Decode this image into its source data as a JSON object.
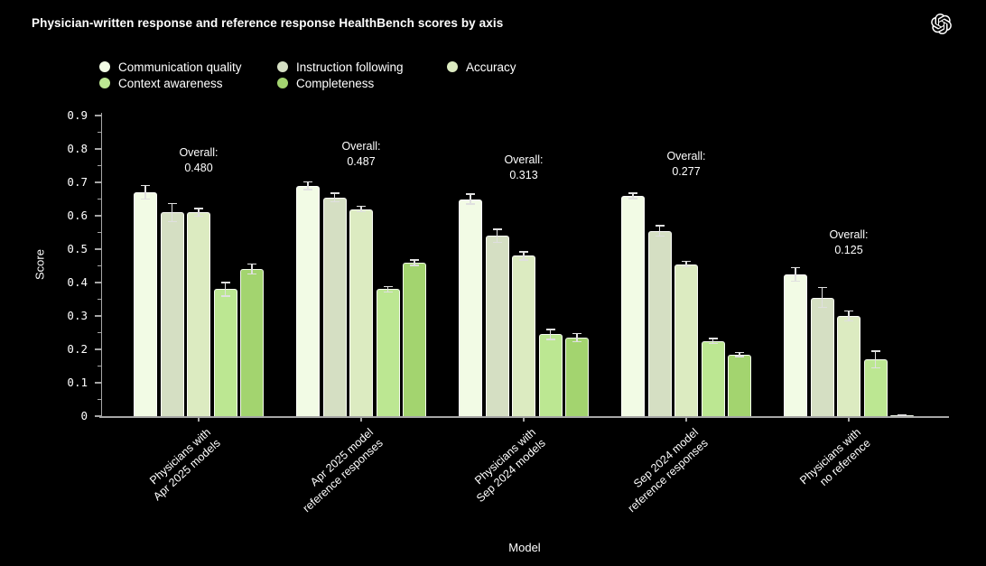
{
  "header": {
    "title": "Physician-written response and reference response HealthBench scores by axis",
    "logo_icon": "openai-logo"
  },
  "chart_data": {
    "type": "bar",
    "title": "Physician-written response and reference response HealthBench scores by axis",
    "xlabel": "Model",
    "ylabel": "Score",
    "ylim": [
      0,
      0.9
    ],
    "ytick_step": 0.1,
    "ytick_minor_step": 0.05,
    "ytick_labels": [
      "0",
      "0.1",
      "0.2",
      "0.3",
      "0.4",
      "0.5",
      "0.6",
      "0.7",
      "0.8",
      "0.9"
    ],
    "grid": false,
    "legend_position": "top-left",
    "background_color": "#000000",
    "text_color": "#ffffff",
    "axis_color": "#a6a6a6",
    "errorbar_color": "#e0e0e0",
    "categories": [
      [
        "Physicians with",
        "Apr 2025 models"
      ],
      [
        "Apr 2025 model",
        "reference responses"
      ],
      [
        "Physicians with",
        "Sep 2024 models"
      ],
      [
        "Sep 2024 model",
        "reference responses"
      ],
      [
        "Physicians with",
        "no reference"
      ]
    ],
    "series": [
      {
        "name": "Communication quality",
        "color": "#f2fbe5",
        "values": [
          0.67,
          0.69,
          0.65,
          0.66,
          0.425
        ],
        "errors": [
          0.02,
          0.012,
          0.015,
          0.008,
          0.02
        ]
      },
      {
        "name": "Instruction following",
        "color": "#d5dfc3",
        "values": [
          0.61,
          0.655,
          0.54,
          0.555,
          0.355
        ],
        "errors": [
          0.027,
          0.013,
          0.02,
          0.015,
          0.03
        ]
      },
      {
        "name": "Accuracy",
        "color": "#dcebc1",
        "values": [
          0.61,
          0.62,
          0.48,
          0.455,
          0.3
        ],
        "errors": [
          0.012,
          0.008,
          0.012,
          0.008,
          0.015
        ]
      },
      {
        "name": "Context awareness",
        "color": "#bce792",
        "values": [
          0.38,
          0.38,
          0.245,
          0.225,
          0.17
        ],
        "errors": [
          0.02,
          0.008,
          0.015,
          0.008,
          0.025
        ]
      },
      {
        "name": "Completeness",
        "color": "#a3d46f",
        "values": [
          0.44,
          0.46,
          0.235,
          0.185,
          0.002
        ],
        "errors": [
          0.015,
          0.008,
          0.012,
          0.006,
          0.003
        ]
      }
    ],
    "overall": {
      "label": "Overall:",
      "values": [
        "0.480",
        "0.487",
        "0.313",
        "0.277",
        "0.125"
      ]
    }
  }
}
